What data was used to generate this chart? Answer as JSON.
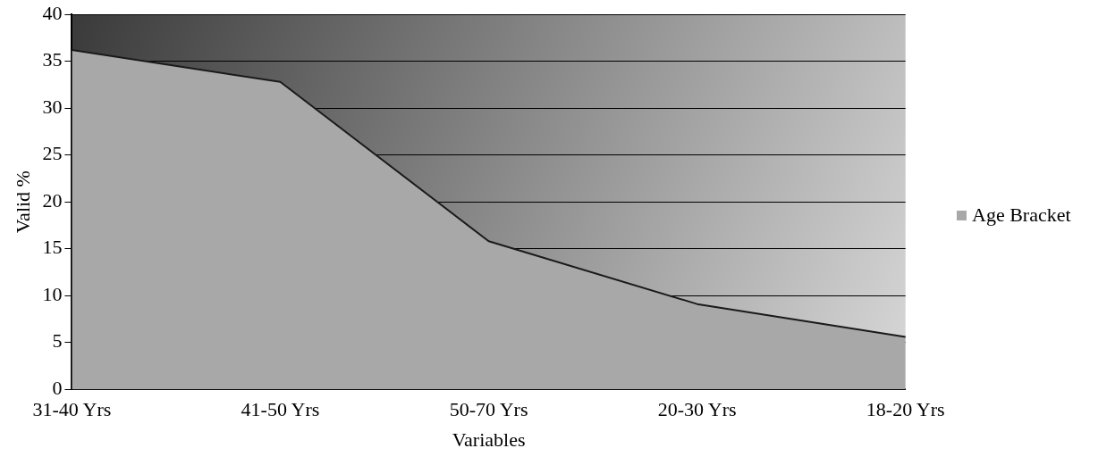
{
  "chart_data": {
    "type": "area",
    "xlabel": "Variables",
    "ylabel": "Valid %",
    "categories": [
      "31-40 Yrs",
      "41-50 Yrs",
      "50-70 Yrs",
      "20-30 Yrs",
      "18-20 Yrs"
    ],
    "series": [
      {
        "name": "Age Bracket",
        "color": "#a8a8a8",
        "values": [
          36.2,
          32.8,
          15.8,
          9.1,
          5.6
        ]
      }
    ],
    "ylim": [
      0,
      40
    ],
    "yticks": [
      0,
      5,
      10,
      15,
      20,
      25,
      30,
      35,
      40
    ],
    "grid": "y",
    "legend": "right"
  }
}
